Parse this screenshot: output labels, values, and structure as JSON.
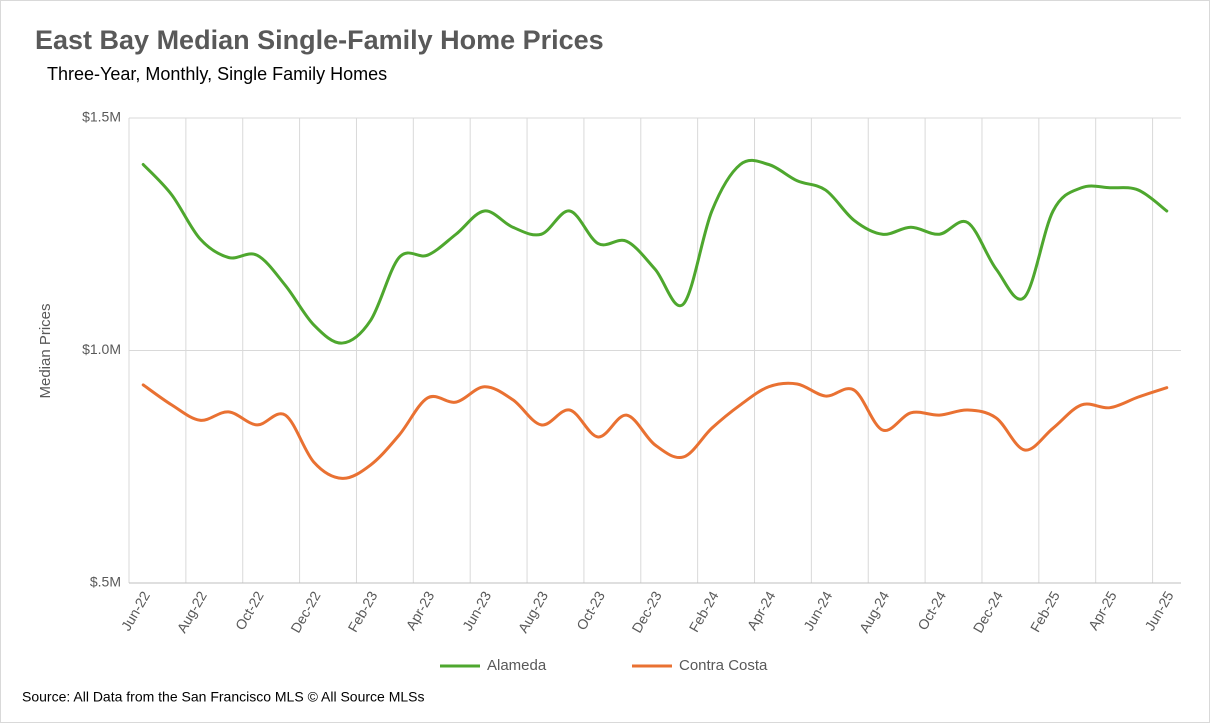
{
  "chart_data": {
    "type": "line",
    "title": "East Bay Median Single-Family Home Prices",
    "subtitle": "Three-Year, Monthly, Single Family Homes",
    "y_label": "Median Prices",
    "source": "Source: All Data from the San Francisco MLS © All Source MLSs",
    "categories": [
      "Jun-22",
      null,
      "Aug-22",
      null,
      "Oct-22",
      null,
      "Dec-22",
      null,
      "Feb-23",
      null,
      "Apr-23",
      null,
      "Jun-23",
      null,
      "Aug-23",
      null,
      "Oct-23",
      null,
      "Dec-23",
      null,
      "Feb-24",
      null,
      "Apr-24",
      null,
      "Jun-24",
      null,
      "Aug-24",
      null,
      "Oct-24",
      null,
      "Dec-24",
      null,
      "Feb-25",
      null,
      "Apr-25",
      null,
      "Jun-25"
    ],
    "series": [
      {
        "name": "Alameda",
        "color": "#4ea72e",
        "values": [
          1400000,
          1335000,
          1240000,
          1200000,
          1205000,
          1140000,
          1055000,
          1016000,
          1065000,
          1200000,
          1205000,
          1250000,
          1300000,
          1265000,
          1250000,
          1300000,
          1230000,
          1235000,
          1175000,
          1100000,
          1300000,
          1400000,
          1400000,
          1365000,
          1345000,
          1280000,
          1250000,
          1265000,
          1250000,
          1275000,
          1175000,
          1115000,
          1300000,
          1350000,
          1350000,
          1345000,
          1300000
        ]
      },
      {
        "name": "Contra Costa",
        "color": "#e97132",
        "values": [
          926000,
          883000,
          850000,
          868000,
          840000,
          861000,
          760000,
          725000,
          754000,
          818000,
          898000,
          889000,
          922000,
          894000,
          840000,
          872000,
          814000,
          861000,
          797000,
          771000,
          833000,
          883000,
          922000,
          928000,
          902000,
          915000,
          829000,
          866000,
          861000,
          872000,
          855000,
          786000,
          833000,
          883000,
          877000,
          900000,
          920000
        ]
      }
    ],
    "ylim": [
      500000,
      1500000
    ],
    "yticks": [
      {
        "value": 500000,
        "label": "$.5M"
      },
      {
        "value": 1000000,
        "label": "$1.0M"
      },
      {
        "value": 1500000,
        "label": "$1.5M"
      }
    ],
    "grid": true,
    "legend": "bottom"
  }
}
